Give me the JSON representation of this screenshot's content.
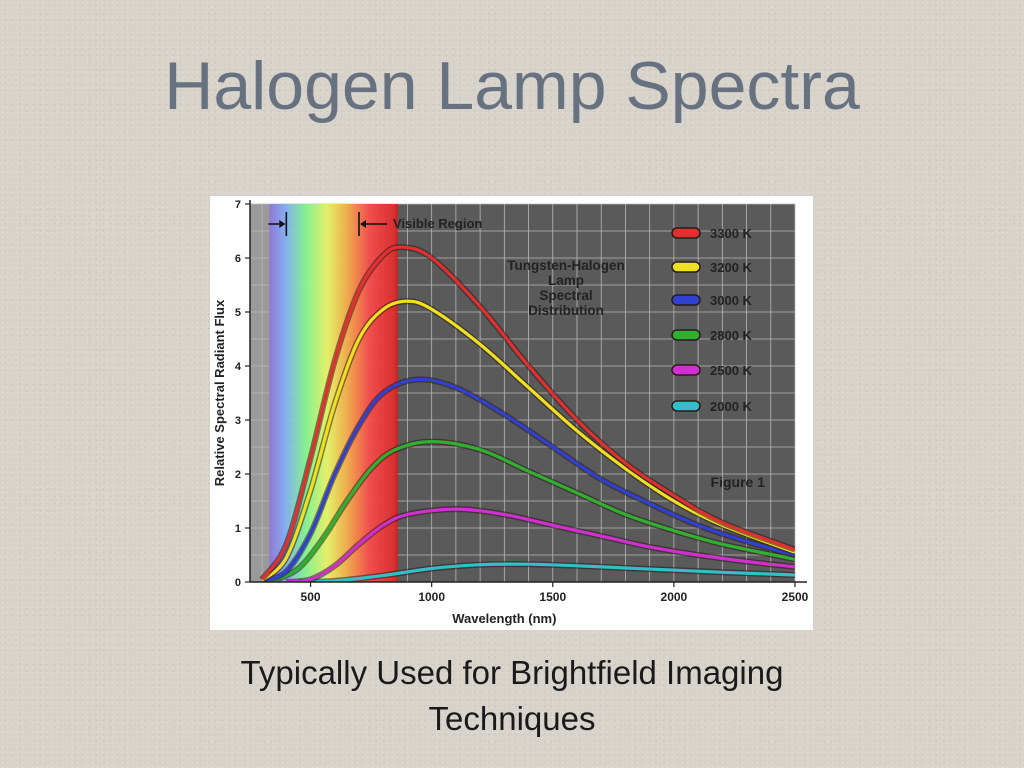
{
  "slide": {
    "title": "Halogen Lamp Spectra",
    "caption_line1": "Typically Used for Brightfield Imaging",
    "caption_line2": "Techniques"
  },
  "chart_data": {
    "type": "line",
    "title": "Tungsten-Halogen Lamp Spectral Distribution",
    "title_lines": [
      "Tungsten-Halogen",
      "Lamp",
      "Spectral",
      "Distribution"
    ],
    "figure_label": "Figure 1",
    "annotation": "Visible Region",
    "xlabel": "Wavelength (nm)",
    "ylabel": "Relative Spectral Radiant Flux",
    "xlim": [
      250,
      2500
    ],
    "ylim": [
      0,
      7
    ],
    "xticks": [
      500,
      1000,
      1500,
      2000,
      2500
    ],
    "yticks": [
      0,
      1,
      2,
      3,
      4,
      5,
      6,
      7
    ],
    "grid": true,
    "legend_position": "top-right",
    "visible_region": [
      400,
      700
    ],
    "series": [
      {
        "name": "3300 K",
        "color": "#e03030",
        "x": [
          300,
          400,
          500,
          600,
          700,
          800,
          880,
          1000,
          1200,
          1400,
          1600,
          1800,
          2000,
          2200,
          2500
        ],
        "y": [
          0.05,
          0.7,
          2.3,
          4.1,
          5.4,
          6.05,
          6.2,
          6.0,
          5.1,
          4.0,
          3.0,
          2.2,
          1.6,
          1.1,
          0.6
        ]
      },
      {
        "name": "3200 K",
        "color": "#f0e020",
        "x": [
          300,
          400,
          500,
          600,
          700,
          800,
          900,
          1000,
          1200,
          1400,
          1600,
          1800,
          2000,
          2200,
          2500
        ],
        "y": [
          0.03,
          0.45,
          1.7,
          3.3,
          4.5,
          5.05,
          5.2,
          5.05,
          4.4,
          3.6,
          2.8,
          2.1,
          1.5,
          1.05,
          0.55
        ]
      },
      {
        "name": "3000 K",
        "color": "#3040d0",
        "x": [
          300,
          400,
          500,
          600,
          700,
          800,
          940,
          1100,
          1300,
          1500,
          1700,
          1900,
          2100,
          2300,
          2500
        ],
        "y": [
          0.02,
          0.2,
          0.9,
          2.0,
          2.9,
          3.5,
          3.75,
          3.6,
          3.1,
          2.5,
          1.9,
          1.45,
          1.05,
          0.75,
          0.5
        ]
      },
      {
        "name": "2800 K",
        "color": "#30b030",
        "x": [
          350,
          450,
          550,
          650,
          750,
          850,
          1000,
          1200,
          1400,
          1600,
          1800,
          2000,
          2200,
          2500
        ],
        "y": [
          0.03,
          0.25,
          0.8,
          1.5,
          2.1,
          2.45,
          2.6,
          2.45,
          2.05,
          1.65,
          1.25,
          0.95,
          0.7,
          0.42
        ]
      },
      {
        "name": "2500 K",
        "color": "#d030d0",
        "x": [
          400,
          500,
          600,
          700,
          800,
          900,
          1100,
          1300,
          1500,
          1700,
          1900,
          2100,
          2300,
          2500
        ],
        "y": [
          0.0,
          0.05,
          0.3,
          0.7,
          1.05,
          1.25,
          1.35,
          1.25,
          1.05,
          0.85,
          0.65,
          0.5,
          0.38,
          0.28
        ]
      },
      {
        "name": "2000 K",
        "color": "#30c0c8",
        "x": [
          450,
          600,
          800,
          1000,
          1200,
          1400,
          1600,
          1800,
          2000,
          2200,
          2500
        ],
        "y": [
          0.0,
          0.02,
          0.12,
          0.25,
          0.32,
          0.33,
          0.3,
          0.26,
          0.22,
          0.18,
          0.13
        ]
      }
    ]
  }
}
